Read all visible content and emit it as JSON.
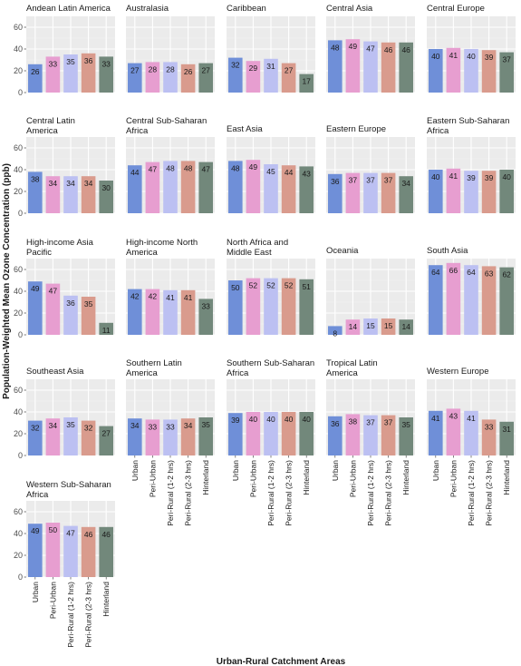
{
  "chart_data": {
    "type": "bar",
    "xlabel": "Urban-Rural Catchment Areas",
    "ylabel": "Population-Weighted Mean Ozone Concentration (ppb)",
    "ylim": [
      0,
      70
    ],
    "yticks": [
      0,
      20,
      40,
      60
    ],
    "grid": true,
    "categories": [
      "Urban",
      "Peri-Urban",
      "Peri-Rural (1-2 hrs)",
      "Peri-Rural (2-3 hrs)",
      "Hinterland"
    ],
    "colors": [
      "#6f8fd8",
      "#e79ed0",
      "#bcc0f2",
      "#d99b8d",
      "#72887b"
    ],
    "panels": [
      {
        "title": [
          "Andean Latin America"
        ],
        "values": [
          26,
          33,
          35,
          36,
          33
        ]
      },
      {
        "title": [
          "Australasia"
        ],
        "values": [
          27,
          28,
          28,
          26,
          27
        ]
      },
      {
        "title": [
          "Caribbean"
        ],
        "values": [
          32,
          29,
          31,
          27,
          17
        ]
      },
      {
        "title": [
          "Central Asia"
        ],
        "values": [
          48,
          49,
          47,
          46,
          46
        ]
      },
      {
        "title": [
          "Central Europe"
        ],
        "values": [
          40,
          41,
          40,
          39,
          37
        ]
      },
      {
        "title": [
          "Central Latin",
          "America"
        ],
        "values": [
          38,
          34,
          34,
          34,
          30
        ]
      },
      {
        "title": [
          "Central Sub-Saharan",
          "Africa"
        ],
        "values": [
          44,
          47,
          48,
          48,
          47
        ]
      },
      {
        "title": [
          "East Asia"
        ],
        "values": [
          48,
          49,
          45,
          44,
          43
        ]
      },
      {
        "title": [
          "Eastern Europe"
        ],
        "values": [
          36,
          37,
          37,
          37,
          34
        ]
      },
      {
        "title": [
          "Eastern Sub-Saharan",
          "Africa"
        ],
        "values": [
          40,
          41,
          39,
          39,
          40
        ]
      },
      {
        "title": [
          "High-income Asia",
          "Pacific"
        ],
        "values": [
          49,
          47,
          36,
          35,
          11
        ]
      },
      {
        "title": [
          "High-income North",
          "America"
        ],
        "values": [
          42,
          42,
          41,
          41,
          33
        ]
      },
      {
        "title": [
          "North Africa and",
          "Middle East"
        ],
        "values": [
          50,
          52,
          52,
          52,
          51
        ]
      },
      {
        "title": [
          "Oceania"
        ],
        "values": [
          8,
          14,
          15,
          15,
          14
        ]
      },
      {
        "title": [
          "South Asia"
        ],
        "values": [
          64,
          66,
          64,
          63,
          62
        ]
      },
      {
        "title": [
          "Southeast Asia"
        ],
        "values": [
          32,
          34,
          35,
          32,
          27
        ]
      },
      {
        "title": [
          "Southern Latin",
          "America"
        ],
        "values": [
          34,
          33,
          33,
          34,
          35
        ]
      },
      {
        "title": [
          "Southern Sub-Saharan",
          "Africa"
        ],
        "values": [
          39,
          40,
          40,
          40,
          40
        ]
      },
      {
        "title": [
          "Tropical Latin",
          "America"
        ],
        "values": [
          36,
          38,
          37,
          37,
          35
        ]
      },
      {
        "title": [
          "Western Europe"
        ],
        "values": [
          41,
          43,
          41,
          33,
          31
        ]
      },
      {
        "title": [
          "Western Sub-Saharan",
          "Africa"
        ],
        "values": [
          49,
          50,
          47,
          46,
          46
        ]
      }
    ]
  }
}
